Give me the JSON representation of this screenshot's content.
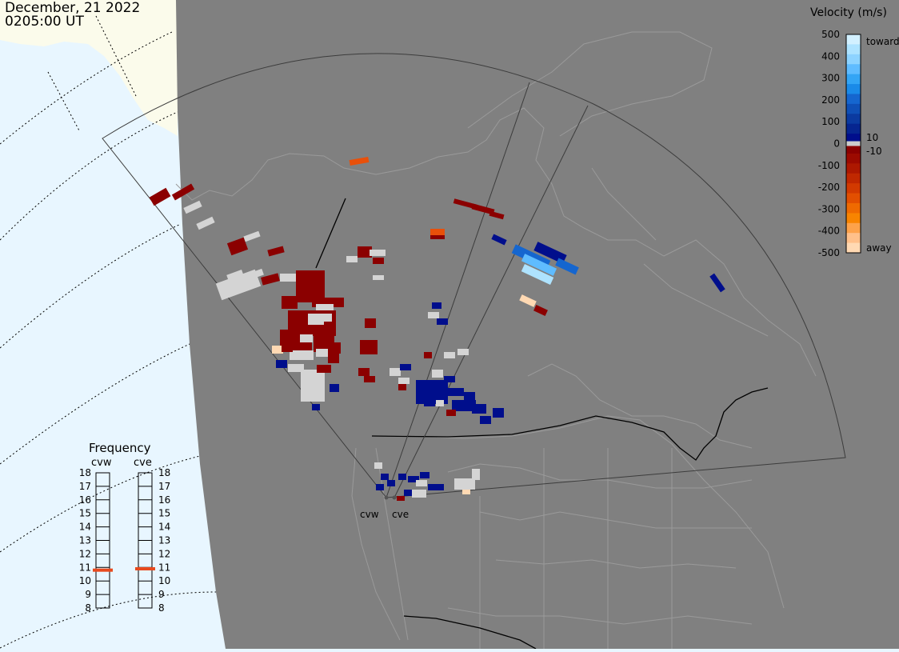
{
  "header": {
    "date": "December, 21 2022",
    "time": "0205:00 UT"
  },
  "colors": {
    "ocean": "#e8f6ff",
    "ice": "#fbfbeb",
    "night_land": "#808080",
    "coast": "#9a9a9a",
    "border": "#000000",
    "fov_line": "#3c3c3c",
    "ground_scatter": "#d4d4d4",
    "toward_dark": "#000e8c",
    "toward_light": "#d2f0ff",
    "away_dark": "#8b0000",
    "away_light": "#ffd9b3"
  },
  "velocity_scale": {
    "title": "Velocity (m/s)",
    "ticks": [
      "500",
      "400",
      "300",
      "200",
      "100",
      "0",
      "-100",
      "-200",
      "-300",
      "-400",
      "-500"
    ],
    "label_toward": "toward",
    "label_away": "away",
    "label_pos_min": "10",
    "label_neg_min": "-10"
  },
  "frequency": {
    "title": "Frequency",
    "radars": [
      "cvw",
      "cve"
    ],
    "ticks": [
      "18",
      "17",
      "16",
      "15",
      "14",
      "13",
      "12",
      "11",
      "10",
      "9",
      "8"
    ],
    "values_mhz": [
      10.8,
      10.9
    ]
  },
  "map": {
    "radar_sites": [
      "cvw",
      "cve"
    ]
  }
}
